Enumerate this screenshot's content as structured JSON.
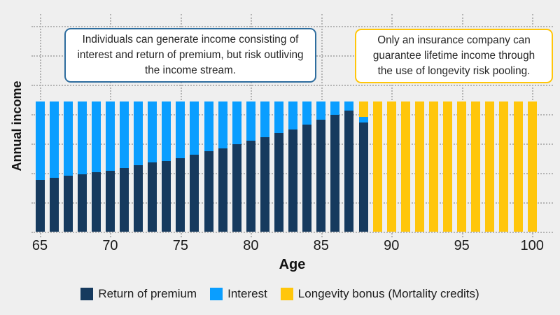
{
  "page": {
    "background": "#efefef"
  },
  "callouts": {
    "individual": {
      "text": "Individuals can generate income consisting of interest and return of premium, but risk outliving the income stream.",
      "border_color": "#2e6d9e"
    },
    "insurance": {
      "text": "Only an insurance company can guarantee lifetime income through the use of longevity risk pooling.",
      "border_color": "#ffc60b"
    }
  },
  "chart_data": {
    "type": "bar",
    "stacked": true,
    "title": "",
    "xlabel": "Age",
    "ylabel": "Annual income",
    "x": [
      65,
      66,
      67,
      68,
      69,
      70,
      71,
      72,
      73,
      74,
      75,
      76,
      77,
      78,
      79,
      80,
      81,
      82,
      83,
      84,
      85,
      86,
      87,
      88,
      89,
      90,
      91,
      92,
      93,
      94,
      95,
      96,
      97,
      98,
      99,
      100
    ],
    "x_ticks": [
      65,
      70,
      75,
      80,
      85,
      90,
      95,
      100
    ],
    "ylim": [
      0,
      100
    ],
    "y_tick_labels_shown": false,
    "grid": true,
    "gridline_style": "dotted",
    "legend_position": "bottom",
    "series": [
      {
        "name": "Return of premium",
        "color": "#163a5e",
        "values": [
          40,
          41.5,
          43,
          44,
          45.5,
          47,
          49,
          51,
          53,
          54.5,
          56.5,
          59,
          62,
          64,
          67,
          70,
          72.5,
          76,
          78.5,
          82,
          86,
          90,
          93,
          84,
          0,
          0,
          0,
          0,
          0,
          0,
          0,
          0,
          0,
          0,
          0,
          0
        ]
      },
      {
        "name": "Interest",
        "color": "#0a9eff",
        "values": [
          60,
          58.5,
          57,
          56,
          54.5,
          53,
          51,
          49,
          47,
          45.5,
          43.5,
          41,
          38,
          36,
          33,
          30,
          27.5,
          24,
          21.5,
          18,
          14,
          10,
          7,
          4,
          0,
          0,
          0,
          0,
          0,
          0,
          0,
          0,
          0,
          0,
          0,
          0
        ]
      },
      {
        "name": "Longevity bonus (Mortality credits)",
        "color": "#ffc60b",
        "values": [
          0,
          0,
          0,
          0,
          0,
          0,
          0,
          0,
          0,
          0,
          0,
          0,
          0,
          0,
          0,
          0,
          0,
          0,
          0,
          0,
          0,
          0,
          0,
          12,
          100,
          100,
          100,
          100,
          100,
          100,
          100,
          100,
          100,
          100,
          100,
          100
        ]
      }
    ]
  }
}
